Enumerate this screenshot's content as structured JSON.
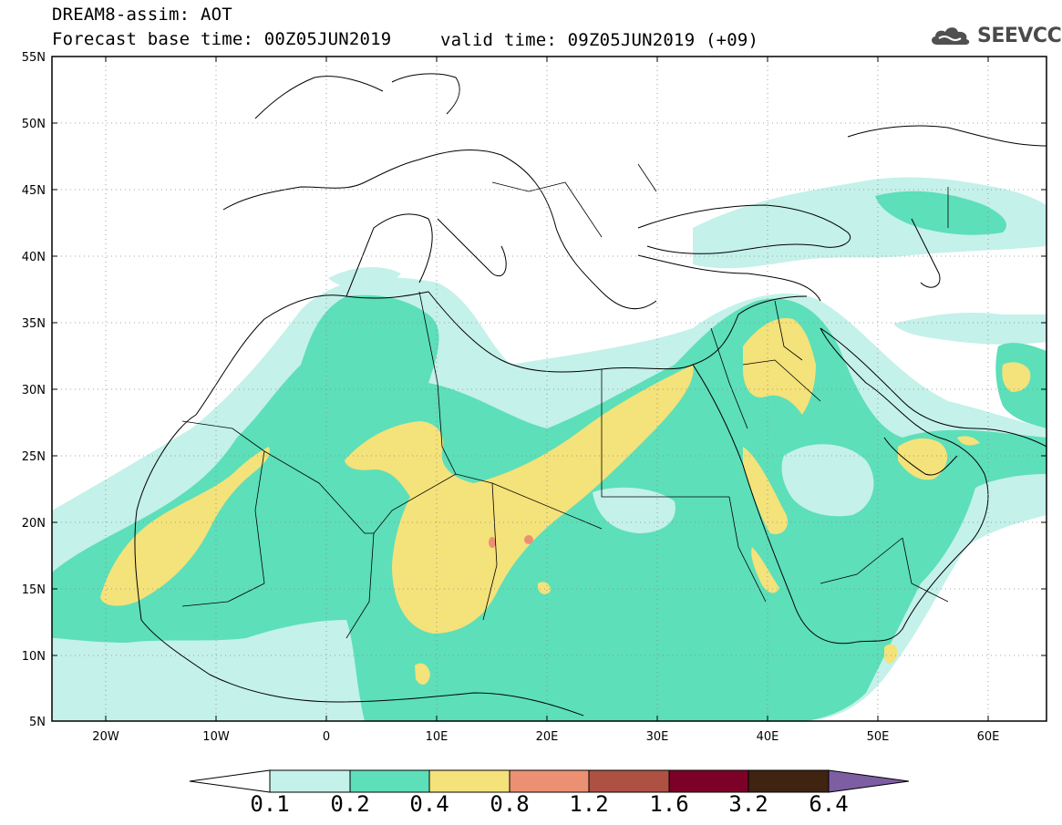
{
  "title": {
    "line1": "DREAM8-assim: AOT",
    "line2": "Forecast base time: 00Z05JUN2019",
    "valid": "valid time: 09Z05JUN2019 (+09)"
  },
  "logo": {
    "text": "SEEVCCC",
    "icon": "cloud-icon"
  },
  "axes": {
    "lat_labels": [
      "55N",
      "50N",
      "45N",
      "40N",
      "35N",
      "30N",
      "25N",
      "20N",
      "15N",
      "10N",
      "5N"
    ],
    "lon_labels": [
      "20W",
      "10W",
      "0",
      "10E",
      "20E",
      "30E",
      "40E",
      "50E",
      "60E"
    ]
  },
  "colorbar": {
    "labels": [
      "0.1",
      "0.2",
      "0.4",
      "0.8",
      "1.2",
      "1.6",
      "3.2",
      "6.4"
    ],
    "colors": [
      "#ffffff",
      "#c4f1e9",
      "#5ddfb9",
      "#f4e27a",
      "#eb9072",
      "#ae5143",
      "#7c0027",
      "#3e2411",
      "#7e5ea3"
    ]
  },
  "colors": {
    "aot_0_1": "#c4f1e9",
    "aot_0_2": "#5ddfb9",
    "aot_0_4": "#f4e27a",
    "aot_0_8": "#eb9072"
  }
}
